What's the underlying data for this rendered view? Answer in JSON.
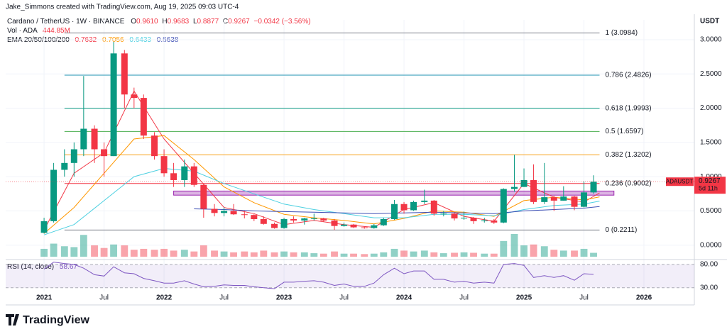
{
  "header": {
    "attribution": "Jake_Simmons created with TradingView.com, Aug 19, 2025 09:03 UTC-4",
    "symbol": "Cardano / TetherUS · 1W · BINANCE",
    "ohlc": [
      {
        "k": "O",
        "v": "0.9610"
      },
      {
        "k": "H",
        "v": "0.9683"
      },
      {
        "k": "L",
        "v": "0.8877"
      },
      {
        "k": "C",
        "v": "0.9267"
      }
    ],
    "change": "−0.0342 (−3.56%)"
  },
  "chart_data": {
    "type": "candlestick",
    "x": [
      2021.0,
      2021.08,
      2021.17,
      2021.25,
      2021.33,
      2021.42,
      2021.5,
      2021.58,
      2021.67,
      2021.75,
      2021.83,
      2021.92,
      2022.0,
      2022.08,
      2022.17,
      2022.25,
      2022.33,
      2022.42,
      2022.5,
      2022.58,
      2022.67,
      2022.75,
      2022.83,
      2022.92,
      2023.0,
      2023.08,
      2023.17,
      2023.25,
      2023.33,
      2023.42,
      2023.5,
      2023.58,
      2023.67,
      2023.75,
      2023.83,
      2023.92,
      2024.0,
      2024.08,
      2024.17,
      2024.25,
      2024.33,
      2024.42,
      2024.5,
      2024.58,
      2024.67,
      2024.75,
      2024.83,
      2024.92,
      2025.0,
      2025.08,
      2025.17,
      2025.25,
      2025.33,
      2025.42,
      2025.5,
      2025.58
    ],
    "open": [
      0.18,
      0.35,
      1.1,
      1.2,
      1.4,
      1.7,
      1.4,
      1.3,
      2.8,
      2.2,
      2.15,
      1.6,
      1.3,
      1.05,
      0.95,
      1.15,
      0.88,
      0.53,
      0.47,
      0.5,
      0.45,
      0.44,
      0.38,
      0.31,
      0.25,
      0.38,
      0.36,
      0.39,
      0.39,
      0.36,
      0.28,
      0.3,
      0.26,
      0.25,
      0.29,
      0.38,
      0.6,
      0.51,
      0.63,
      0.65,
      0.46,
      0.46,
      0.39,
      0.4,
      0.35,
      0.36,
      0.33,
      0.82,
      0.85,
      0.95,
      0.63,
      0.7,
      0.65,
      0.71,
      0.56,
      0.77
    ],
    "high": [
      0.4,
      1.2,
      1.4,
      1.5,
      2.47,
      1.75,
      1.5,
      2.97,
      2.85,
      2.3,
      2.2,
      1.65,
      1.4,
      1.2,
      1.25,
      1.2,
      0.9,
      0.6,
      0.55,
      0.6,
      0.5,
      0.45,
      0.42,
      0.33,
      0.4,
      0.42,
      0.4,
      0.46,
      0.4,
      0.38,
      0.33,
      0.31,
      0.27,
      0.31,
      0.4,
      0.66,
      0.63,
      0.65,
      0.81,
      0.66,
      0.5,
      0.47,
      0.49,
      0.41,
      0.4,
      0.38,
      0.83,
      1.32,
      1.12,
      1.18,
      1.2,
      0.72,
      0.86,
      0.72,
      0.93,
      1.02
    ],
    "low": [
      0.17,
      0.33,
      1.0,
      1.0,
      1.3,
      1.2,
      1.0,
      1.3,
      2.0,
      2.0,
      1.55,
      1.25,
      1.0,
      0.85,
      0.85,
      0.85,
      0.4,
      0.42,
      0.42,
      0.44,
      0.39,
      0.35,
      0.3,
      0.24,
      0.24,
      0.33,
      0.3,
      0.36,
      0.34,
      0.22,
      0.27,
      0.25,
      0.24,
      0.24,
      0.28,
      0.37,
      0.46,
      0.5,
      0.6,
      0.43,
      0.42,
      0.36,
      0.37,
      0.31,
      0.33,
      0.31,
      0.32,
      0.78,
      0.85,
      0.6,
      0.6,
      0.5,
      0.65,
      0.51,
      0.55,
      0.75
    ],
    "close": [
      0.35,
      1.1,
      1.2,
      1.4,
      1.7,
      1.4,
      1.3,
      2.8,
      2.2,
      2.15,
      1.6,
      1.3,
      1.05,
      0.95,
      1.15,
      0.88,
      0.53,
      0.47,
      0.5,
      0.45,
      0.44,
      0.38,
      0.31,
      0.25,
      0.38,
      0.36,
      0.39,
      0.39,
      0.36,
      0.28,
      0.3,
      0.26,
      0.25,
      0.29,
      0.38,
      0.6,
      0.51,
      0.63,
      0.65,
      0.46,
      0.46,
      0.39,
      0.4,
      0.35,
      0.36,
      0.33,
      0.82,
      0.85,
      0.95,
      0.63,
      0.7,
      0.65,
      0.71,
      0.56,
      0.77,
      0.9267
    ],
    "colors": {
      "up": "#089981",
      "down": "#f23645"
    },
    "xlim": [
      2020.68,
      2026.42
    ],
    "xticks": [
      2021,
      {
        "value": 2021.5,
        "label": "Jul"
      },
      2022,
      {
        "value": 2022.5,
        "label": "Jul"
      },
      2023,
      {
        "value": 2023.5,
        "label": "Jul"
      },
      2024,
      {
        "value": 2024.5,
        "label": "Jul"
      },
      2025,
      {
        "value": 2025.5,
        "label": "Jul"
      },
      2026
    ],
    "ylim": [
      -0.2,
      3.29
    ],
    "yticks": [
      {
        "value": 0,
        "label": "0.0000"
      },
      {
        "value": 0.5,
        "label": "0.5000"
      },
      {
        "value": 1,
        "label": "1.0000"
      },
      {
        "value": 1.5,
        "label": "1.5000"
      },
      {
        "value": 2,
        "label": "2.0000"
      },
      {
        "value": 2.5,
        "label": "2.5000"
      },
      {
        "value": 3,
        "label": "3.0000"
      }
    ],
    "grid": true,
    "axis_title": "USDT",
    "symbol_tag": "ADAUSDT",
    "countdown": "5d 11h",
    "fib_x": [
      2021.17,
      2025.63
    ],
    "fib_levels": [
      {
        "label": "1 (3.0984)",
        "value": 3.0984,
        "color": "#787b86"
      },
      {
        "label": "0.786 (2.4826)",
        "value": 2.4826,
        "color": "#2196b3"
      },
      {
        "label": "0.618 (1.9993)",
        "value": 1.9993,
        "color": "#089981"
      },
      {
        "label": "0.5 (1.6597)",
        "value": 1.6597,
        "color": "#4caf50"
      },
      {
        "label": "0.382 (1.3202)",
        "value": 1.3202,
        "color": "#f7a21b"
      },
      {
        "label": "0.236 (0.9002)",
        "value": 0.9002,
        "color": "#f23645"
      },
      {
        "label": "0 (0.2211)",
        "value": 0.2211,
        "color": "#787b86"
      }
    ],
    "zone": {
      "x": [
        2022.08,
        2025.75
      ],
      "low": 0.73,
      "high": 0.79,
      "color": "#9c27b0"
    },
    "volume": {
      "name": "Vol · ADA",
      "label": "444.85M",
      "values": [
        900,
        1500,
        1200,
        1100,
        2500,
        1300,
        1000,
        1400,
        1300,
        800,
        900,
        800,
        900,
        700,
        800,
        600,
        1300,
        700,
        600,
        500,
        600,
        500,
        700,
        500,
        600,
        500,
        500,
        400,
        350,
        600,
        350,
        350,
        300,
        350,
        500,
        900,
        700,
        600,
        700,
        500,
        400,
        450,
        500,
        450,
        350,
        350,
        1800,
        2600,
        1300,
        1400,
        1200,
        800,
        700,
        700,
        900,
        444.85
      ]
    },
    "ema": {
      "name": "EMA 20/50/100/200",
      "x": [
        2021,
        2021.25,
        2021.5,
        2021.75,
        2022,
        2022.25,
        2022.5,
        2022.75,
        2023,
        2023.25,
        2023.5,
        2023.75,
        2024,
        2024.25,
        2024.5,
        2024.75,
        2025,
        2025.25,
        2025.5,
        2025.63
      ],
      "series": [
        {
          "color": "#f23645",
          "values": [
            0.22,
            1.05,
            1.35,
            2.25,
            1.55,
            1.05,
            0.55,
            0.46,
            0.3,
            0.36,
            0.3,
            0.26,
            0.52,
            0.62,
            0.42,
            0.35,
            0.9,
            0.7,
            0.63,
            0.7632
          ]
        },
        {
          "color": "#ff9800",
          "values": [
            0.17,
            0.55,
            1.05,
            1.55,
            1.6,
            1.25,
            0.85,
            0.62,
            0.45,
            0.4,
            0.36,
            0.31,
            0.39,
            0.5,
            0.48,
            0.42,
            0.65,
            0.7,
            0.66,
            0.7056
          ]
        },
        {
          "color": "#4dd0e1",
          "values": [
            0.15,
            0.3,
            0.65,
            1.0,
            1.12,
            1.08,
            0.9,
            0.75,
            0.6,
            0.52,
            0.46,
            0.4,
            0.4,
            0.45,
            0.45,
            0.43,
            0.52,
            0.58,
            0.6,
            0.6433
          ]
        },
        {
          "color": "#3f51b5",
          "values": [
            null,
            null,
            null,
            null,
            null,
            0.53,
            0.52,
            0.5,
            0.49,
            0.48,
            0.47,
            0.46,
            0.47,
            0.48,
            0.47,
            0.46,
            0.5,
            0.52,
            0.54,
            0.5638
          ]
        }
      ]
    },
    "rsi": {
      "name": "RSI (14, close)",
      "color": "#7e57c2",
      "ylim": [
        22,
        89
      ],
      "yticks": [
        {
          "value": 80,
          "label": "80.00"
        },
        {
          "value": 30,
          "label": "30.00"
        }
      ],
      "values": [
        70,
        85,
        82,
        80,
        72,
        58,
        55,
        75,
        62,
        60,
        50,
        45,
        40,
        40,
        45,
        38,
        32,
        33,
        36,
        35,
        35,
        32,
        30,
        28,
        42,
        42,
        44,
        45,
        42,
        35,
        38,
        33,
        33,
        40,
        58,
        72,
        60,
        66,
        66,
        48,
        48,
        42,
        44,
        40,
        42,
        40,
        80,
        82,
        78,
        52,
        56,
        52,
        56,
        46,
        60,
        58.67
      ]
    }
  },
  "footer": {
    "logo": "TradingView"
  }
}
